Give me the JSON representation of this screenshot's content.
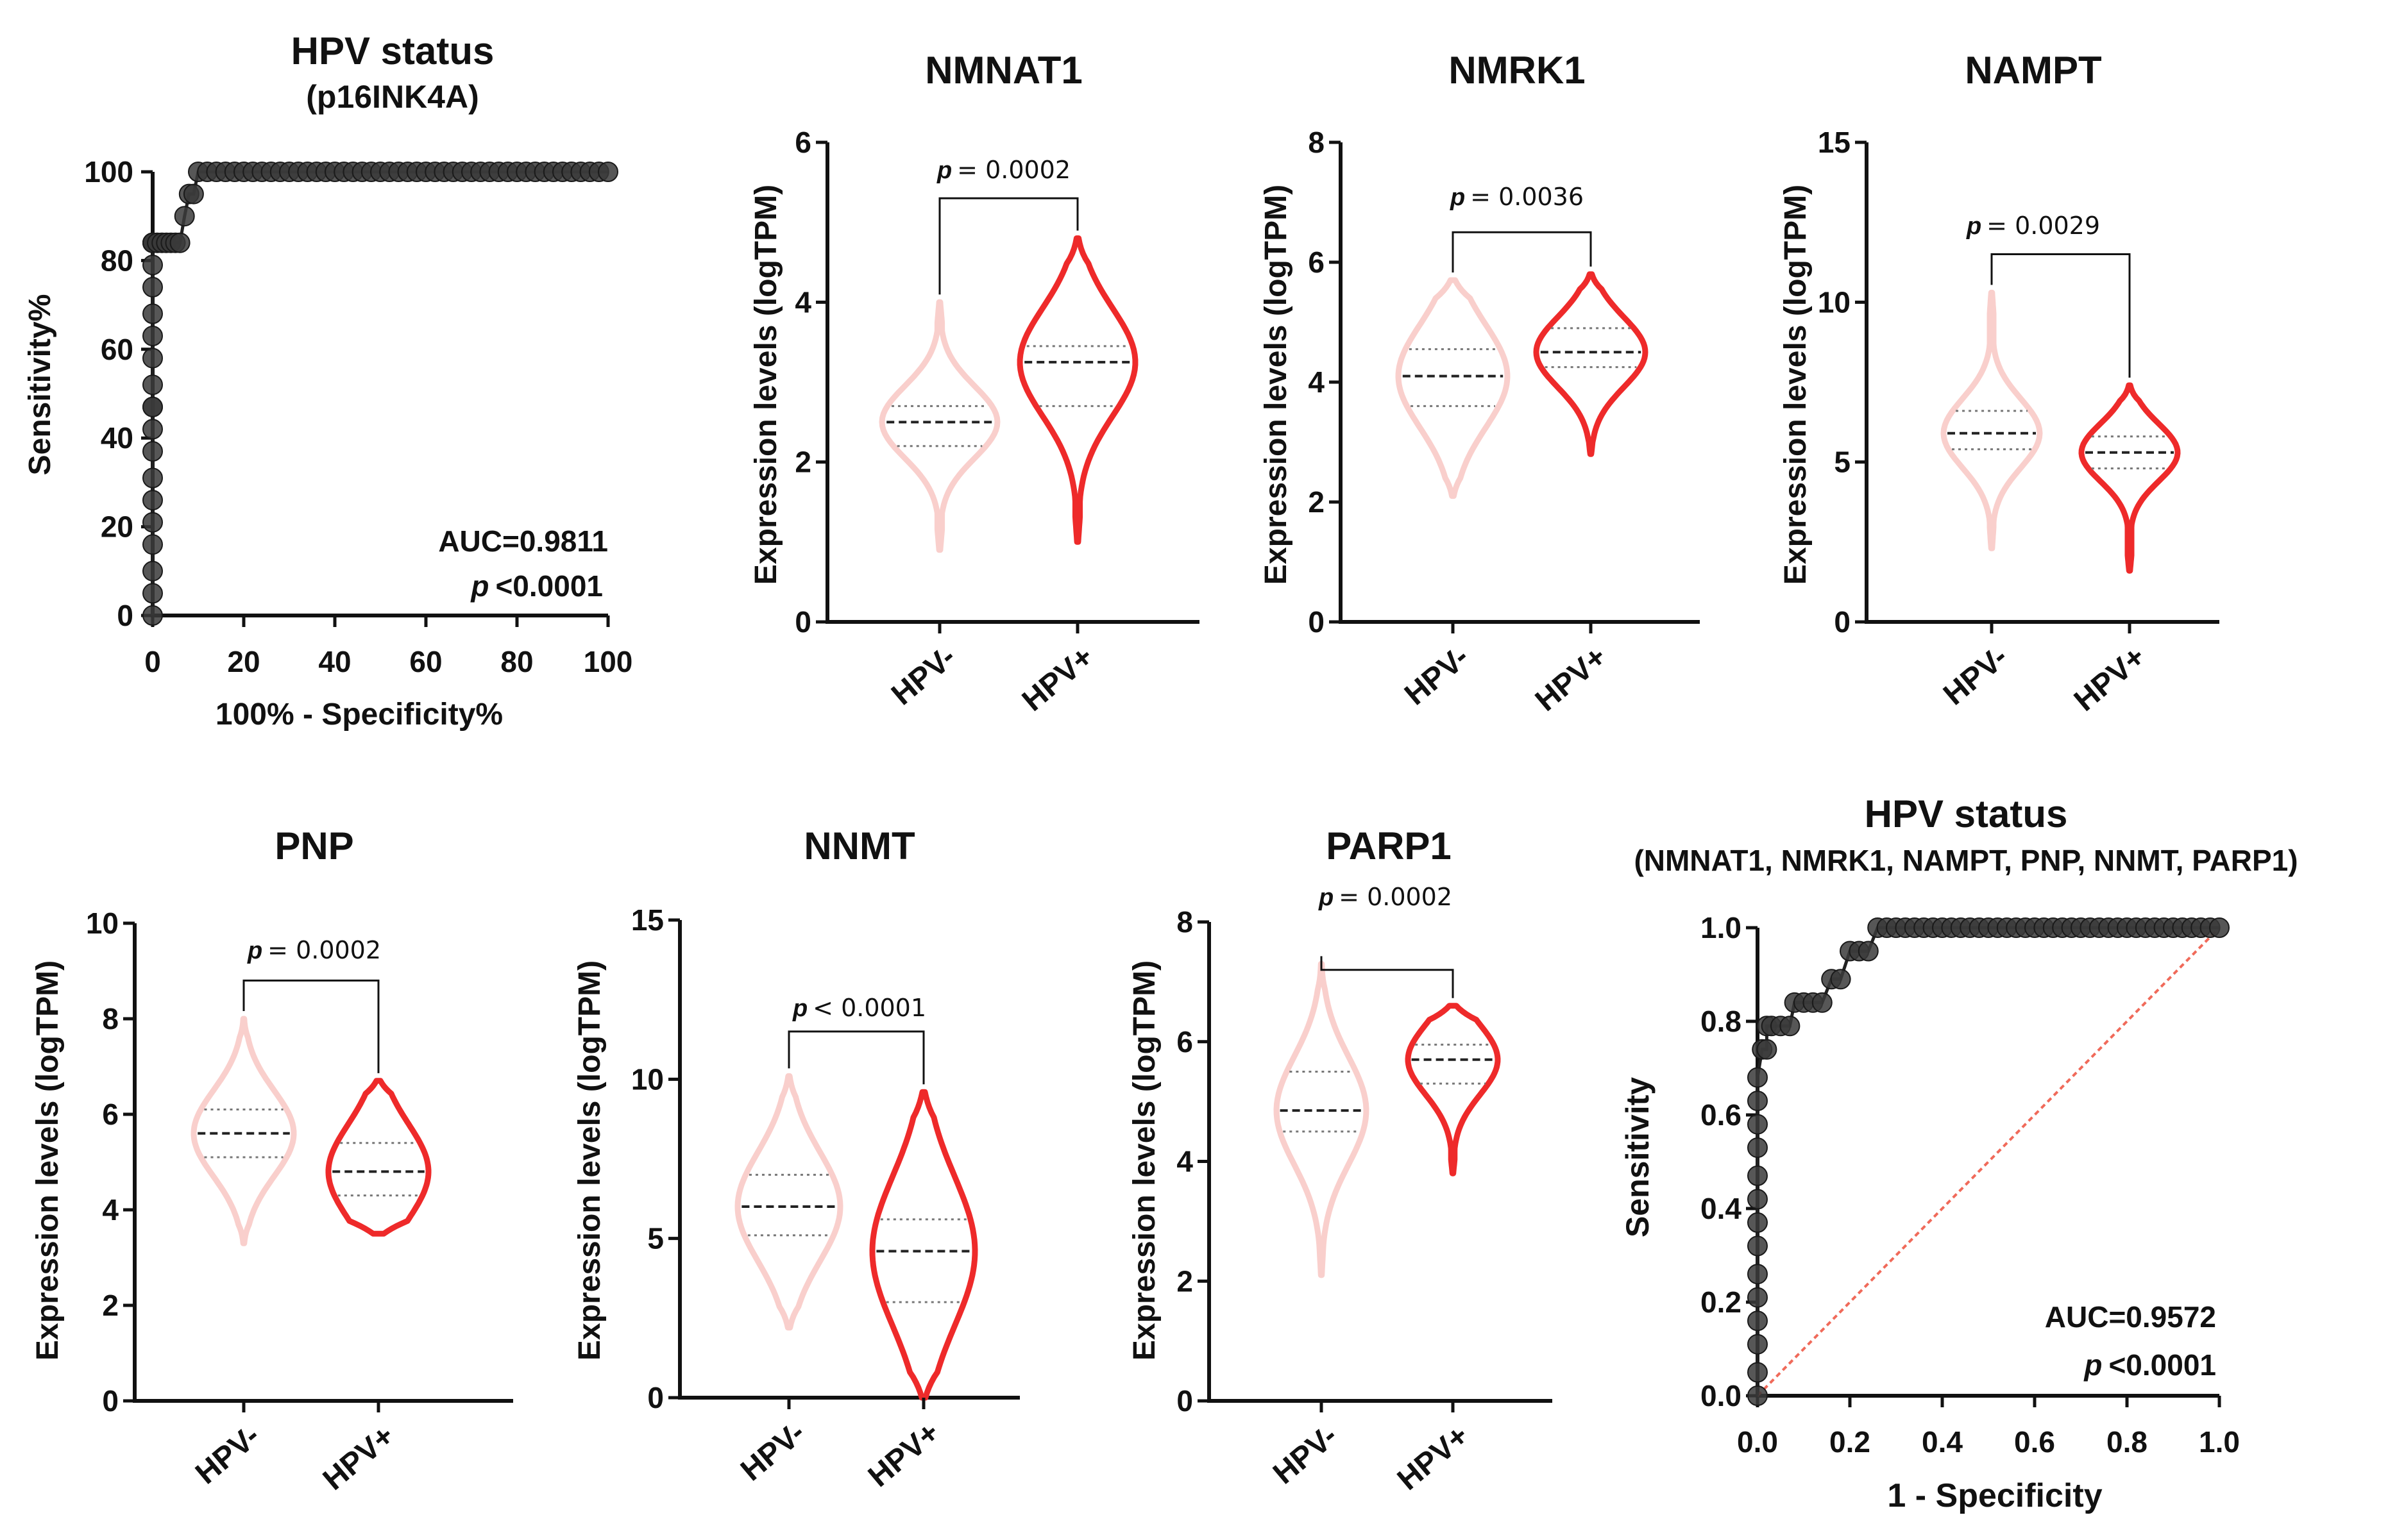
{
  "colors": {
    "hpv_neg": "#f9cfcc",
    "hpv_pos": "#ee2a2a",
    "axis": "#111111",
    "roc_point": "#3a3a3a",
    "diagonal": "#f06a5a"
  },
  "chart_data": [
    {
      "id": "roc1",
      "type": "scatter",
      "title": "HPV status",
      "subtitle": "(p16INK4A)",
      "xlabel": "100% - Specificity%",
      "ylabel": "Sensitivity%",
      "xlim": [
        0,
        100
      ],
      "ylim": [
        0,
        100
      ],
      "xticks": [
        "0",
        "20",
        "40",
        "60",
        "80",
        "100"
      ],
      "yticks": [
        "0",
        "20",
        "40",
        "60",
        "80",
        "100"
      ],
      "auc_text": "AUC=0.9811",
      "p_label": "p",
      "p_value": "<0.0001",
      "x": [
        0,
        0,
        0,
        0,
        0,
        0,
        0,
        0,
        0,
        0,
        0,
        0,
        0,
        0,
        0,
        0,
        0,
        0,
        0,
        0,
        0,
        1,
        2,
        3,
        4,
        5,
        6,
        7,
        8,
        9,
        10,
        12,
        14,
        16,
        18,
        20,
        22,
        24,
        26,
        28,
        30,
        32,
        34,
        36,
        38,
        40,
        42,
        44,
        46,
        48,
        50,
        52,
        54,
        56,
        58,
        60,
        62,
        64,
        66,
        68,
        70,
        72,
        74,
        76,
        78,
        80,
        82,
        84,
        86,
        88,
        90,
        92,
        94,
        96,
        98,
        100
      ],
      "y": [
        0,
        5,
        10,
        16,
        21,
        26,
        31,
        37,
        42,
        47,
        47,
        52,
        58,
        63,
        68,
        74,
        79,
        84,
        84,
        84,
        84,
        84,
        84,
        84,
        84,
        84,
        84,
        90,
        95,
        95,
        100,
        100,
        100,
        100,
        100,
        100,
        100,
        100,
        100,
        100,
        100,
        100,
        100,
        100,
        100,
        100,
        100,
        100,
        100,
        100,
        100,
        100,
        100,
        100,
        100,
        100,
        100,
        100,
        100,
        100,
        100,
        100,
        100,
        100,
        100,
        100,
        100,
        100,
        100,
        100,
        100,
        100,
        100,
        100,
        100,
        100
      ]
    },
    {
      "id": "nmnat1",
      "type": "violin",
      "title": "NMNAT1",
      "ylabel": "Expression levels (logTPM)",
      "categories": [
        "HPV-",
        "HPV+"
      ],
      "ylim": [
        0,
        6
      ],
      "yticks": [
        "0",
        "2",
        "4",
        "6"
      ],
      "p_label": "p",
      "p_value": "= 0.0002",
      "bracket_y": 5.3,
      "groups": [
        {
          "name": "HPV-",
          "min": 0.9,
          "q1": 2.2,
          "median": 2.5,
          "q3": 2.7,
          "max": 4.0
        },
        {
          "name": "HPV+",
          "min": 1.0,
          "q1": 2.7,
          "median": 3.25,
          "q3": 3.45,
          "max": 4.8
        }
      ]
    },
    {
      "id": "nmrk1",
      "type": "violin",
      "title": "NMRK1",
      "ylabel": "Expression levels (logTPM)",
      "categories": [
        "HPV-",
        "HPV+"
      ],
      "ylim": [
        0,
        8
      ],
      "yticks": [
        "0",
        "2",
        "4",
        "6",
        "8"
      ],
      "p_label": "p",
      "p_value": "= 0.0036",
      "bracket_y": 6.5,
      "groups": [
        {
          "name": "HPV-",
          "min": 2.1,
          "q1": 3.6,
          "median": 4.1,
          "q3": 4.55,
          "max": 5.7
        },
        {
          "name": "HPV+",
          "min": 2.8,
          "q1": 4.25,
          "median": 4.5,
          "q3": 4.9,
          "max": 5.8
        }
      ]
    },
    {
      "id": "nampt",
      "type": "violin",
      "title": "NAMPT",
      "ylabel": "Expression levels (logTPM)",
      "categories": [
        "HPV-",
        "HPV+"
      ],
      "ylim": [
        0,
        15
      ],
      "yticks": [
        "0",
        "5",
        "10",
        "15"
      ],
      "p_label": "p",
      "p_value": "= 0.0029",
      "bracket_y": 11.5,
      "groups": [
        {
          "name": "HPV-",
          "min": 2.3,
          "q1": 5.4,
          "median": 5.9,
          "q3": 6.6,
          "max": 10.3
        },
        {
          "name": "HPV+",
          "min": 1.6,
          "q1": 4.8,
          "median": 5.3,
          "q3": 5.8,
          "max": 7.4
        }
      ]
    },
    {
      "id": "pnp",
      "type": "violin",
      "title": "PNP",
      "ylabel": "Expression levels (logTPM)",
      "categories": [
        "HPV-",
        "HPV+"
      ],
      "ylim": [
        0,
        10
      ],
      "yticks": [
        "0",
        "2",
        "4",
        "6",
        "8",
        "10"
      ],
      "p_label": "p",
      "p_value": "= 0.0002",
      "bracket_y": 8.8,
      "groups": [
        {
          "name": "HPV-",
          "min": 3.3,
          "q1": 5.1,
          "median": 5.6,
          "q3": 6.1,
          "max": 8.0
        },
        {
          "name": "HPV+",
          "min": 3.5,
          "q1": 4.3,
          "median": 4.8,
          "q3": 5.4,
          "max": 6.7
        }
      ]
    },
    {
      "id": "nnmt",
      "type": "violin",
      "title": "NNMT",
      "ylabel": "Expression levels (logTPM)",
      "categories": [
        "HPV-",
        "HPV+"
      ],
      "ylim": [
        0,
        15
      ],
      "yticks": [
        "0",
        "5",
        "10",
        "15"
      ],
      "p_label": "p",
      "p_value": "< 0.0001",
      "bracket_y": 11.5,
      "groups": [
        {
          "name": "HPV-",
          "min": 2.2,
          "q1": 5.1,
          "median": 6.0,
          "q3": 7.0,
          "max": 10.1
        },
        {
          "name": "HPV+",
          "min": 0.0,
          "q1": 3.0,
          "median": 4.6,
          "q3": 5.6,
          "max": 9.6
        }
      ]
    },
    {
      "id": "parp1",
      "type": "violin",
      "title": "PARP1",
      "ylabel": "Expression levels (logTPM)",
      "categories": [
        "HPV-",
        "HPV+"
      ],
      "ylim": [
        0,
        8
      ],
      "yticks": [
        "0",
        "2",
        "4",
        "6",
        "8"
      ],
      "p_label": "p",
      "p_value": "= 0.0002",
      "bracket_y": 7.2,
      "groups": [
        {
          "name": "HPV-",
          "min": 2.1,
          "q1": 4.5,
          "median": 4.85,
          "q3": 5.5,
          "max": 7.3
        },
        {
          "name": "HPV+",
          "min": 3.8,
          "q1": 5.3,
          "median": 5.7,
          "q3": 5.95,
          "max": 6.6
        }
      ]
    },
    {
      "id": "roc2",
      "type": "scatter",
      "title": "HPV status",
      "subtitle": "(NMNAT1, NMRK1, NAMPT, PNP, NNMT, PARP1)",
      "xlabel": "1 - Specificity",
      "ylabel": "Sensitivity",
      "xlim": [
        0,
        1
      ],
      "ylim": [
        0,
        1
      ],
      "xticks": [
        "0.0",
        "0.2",
        "0.4",
        "0.6",
        "0.8",
        "1.0"
      ],
      "yticks": [
        "0.0",
        "0.2",
        "0.4",
        "0.6",
        "0.8",
        "1.0"
      ],
      "auc_text": "AUC=0.9572",
      "p_label": "p",
      "p_value": "<0.0001",
      "diagonal": true,
      "x": [
        0,
        0,
        0,
        0,
        0,
        0,
        0,
        0,
        0,
        0,
        0,
        0,
        0,
        0,
        0.01,
        0.02,
        0.02,
        0.03,
        0.05,
        0.07,
        0.08,
        0.1,
        0.12,
        0.14,
        0.16,
        0.18,
        0.2,
        0.22,
        0.24,
        0.26,
        0.28,
        0.3,
        0.32,
        0.34,
        0.36,
        0.38,
        0.4,
        0.42,
        0.44,
        0.46,
        0.48,
        0.5,
        0.52,
        0.54,
        0.56,
        0.58,
        0.6,
        0.62,
        0.64,
        0.66,
        0.68,
        0.7,
        0.72,
        0.74,
        0.76,
        0.78,
        0.8,
        0.82,
        0.84,
        0.86,
        0.88,
        0.9,
        0.92,
        0.94,
        0.96,
        0.98,
        1.0
      ],
      "y": [
        0,
        0.05,
        0.11,
        0.16,
        0.21,
        0.26,
        0.32,
        0.37,
        0.42,
        0.47,
        0.53,
        0.58,
        0.63,
        0.68,
        0.74,
        0.74,
        0.79,
        0.79,
        0.79,
        0.79,
        0.84,
        0.84,
        0.84,
        0.84,
        0.89,
        0.89,
        0.95,
        0.95,
        0.95,
        1,
        1,
        1,
        1,
        1,
        1,
        1,
        1,
        1,
        1,
        1,
        1,
        1,
        1,
        1,
        1,
        1,
        1,
        1,
        1,
        1,
        1,
        1,
        1,
        1,
        1,
        1,
        1,
        1,
        1,
        1,
        1,
        1,
        1,
        1,
        1,
        1,
        1
      ]
    }
  ]
}
